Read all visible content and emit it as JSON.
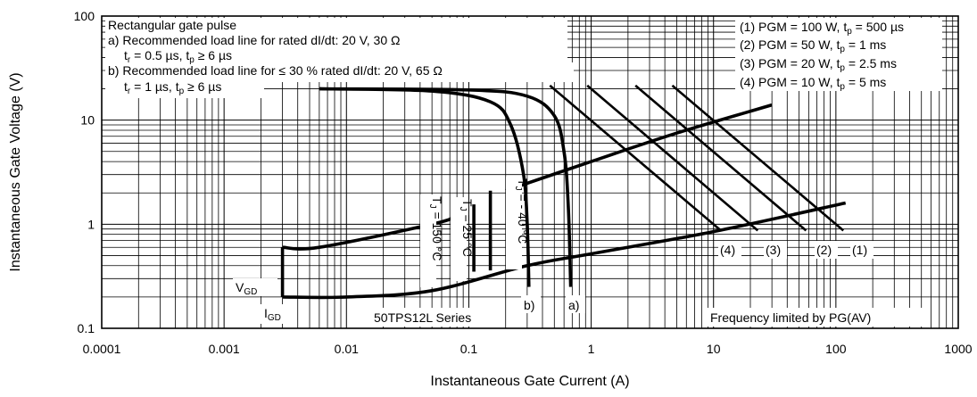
{
  "chart_data": {
    "type": "line",
    "x_scale": "log",
    "y_scale": "log",
    "xlim": [
      0.0001,
      1000
    ],
    "ylim": [
      0.1,
      100
    ],
    "grid": true,
    "xlabel": "Instantaneous Gate Current (A)",
    "ylabel": "Instantaneous Gate Voltage (V)",
    "x_ticks": [
      "0.0001",
      "0.001",
      "0.01",
      "0.1",
      "1",
      "10",
      "100",
      "1000"
    ],
    "y_ticks": [
      "0.1",
      "1",
      "10",
      "100"
    ],
    "notes_left": {
      "line1": "Rectangular gate pulse",
      "line2": "a) Recommended load line for rated dI/dt: 20 V, 30 Ω",
      "line3": "t_r = 0.5 µs, t_p ≥ 6 µs",
      "line4": "b) Recommended load line for ≤ 30 % rated dI/dt: 20 V, 65 Ω",
      "line5": "t_r = 1 µs, t_p ≥ 6 µs"
    },
    "legend_right": [
      {
        "id": "(1)",
        "text": "(1) PGM = 100 W, t_p = 500 µs"
      },
      {
        "id": "(2)",
        "text": "(2) PGM = 50 W, t_p = 1 ms"
      },
      {
        "id": "(3)",
        "text": "(3) PGM = 20 W, t_p = 2.5 ms"
      },
      {
        "id": "(4)",
        "text": "(4) PGM = 10 W, t_p = 5 ms"
      }
    ],
    "annotations": {
      "vgd": "V_GD",
      "igd": "I_GD",
      "series_box": "50TPS12L Series",
      "freq_box": "Frequency limited by PG(AV)",
      "tj150": "T_J = 150 °C",
      "tj25": "T_J = 25 °C",
      "tjm40": "T_J = - 40 °C",
      "label_a": "a)",
      "label_b": "b)",
      "label_1": "(1)",
      "label_2": "(2)",
      "label_3": "(3)",
      "label_4": "(4)"
    },
    "series": [
      {
        "id": "load_line_a",
        "label": "a)",
        "points": [
          [
            0.006,
            20
          ],
          [
            0.1,
            19.5
          ],
          [
            0.3,
            17
          ],
          [
            0.5,
            11
          ],
          [
            0.6,
            5
          ],
          [
            0.65,
            1.5
          ],
          [
            0.68,
            0.25
          ]
        ]
      },
      {
        "id": "load_line_b",
        "label": "b)",
        "points": [
          [
            0.006,
            20
          ],
          [
            0.05,
            19
          ],
          [
            0.15,
            15
          ],
          [
            0.22,
            9
          ],
          [
            0.28,
            3
          ],
          [
            0.3,
            1
          ],
          [
            0.31,
            0.25
          ]
        ]
      },
      {
        "id": "pgm_1",
        "label": "(1)",
        "points": [
          [
            4.6,
            21.5
          ],
          [
            115,
            0.87
          ]
        ]
      },
      {
        "id": "pgm_2",
        "label": "(2)",
        "points": [
          [
            2.3,
            21.5
          ],
          [
            57,
            0.87
          ]
        ]
      },
      {
        "id": "pgm_3",
        "label": "(3)",
        "points": [
          [
            0.93,
            21.5
          ],
          [
            23,
            0.87
          ]
        ]
      },
      {
        "id": "pgm_4",
        "label": "(4)",
        "points": [
          [
            0.46,
            21.5
          ],
          [
            11.5,
            0.87
          ]
        ]
      },
      {
        "id": "vgt_upper_limit",
        "points": [
          [
            0.003,
            0.6
          ],
          [
            0.006,
            0.6
          ],
          [
            0.05,
            1.0
          ],
          [
            0.08,
            1.2
          ]
        ]
      },
      {
        "id": "vgt_upper_limit_hi",
        "points": [
          [
            0.2,
            2.1
          ],
          [
            1,
            4
          ],
          [
            5,
            7.5
          ],
          [
            30,
            14
          ]
        ]
      },
      {
        "id": "vgt_lower_limit",
        "points": [
          [
            0.003,
            0.2
          ],
          [
            0.01,
            0.2
          ],
          [
            0.05,
            0.23
          ],
          [
            0.3,
            0.4
          ],
          [
            1,
            0.52
          ],
          [
            10,
            0.85
          ],
          [
            120,
            1.6
          ]
        ]
      }
    ],
    "boundaries": [
      {
        "id": "tj150_bound",
        "points": [
          [
            0.078,
            0.32
          ],
          [
            0.078,
            1.15
          ]
        ]
      },
      {
        "id": "tj25_bound",
        "points": [
          [
            0.11,
            0.35
          ],
          [
            0.11,
            1.55
          ]
        ]
      },
      {
        "id": "tjm40_bound",
        "points": [
          [
            0.15,
            0.36
          ],
          [
            0.15,
            2.1
          ]
        ]
      },
      {
        "id": "vgd_igd_bound",
        "points": [
          [
            0.003,
            0.2
          ],
          [
            0.003,
            0.6
          ]
        ]
      }
    ]
  }
}
